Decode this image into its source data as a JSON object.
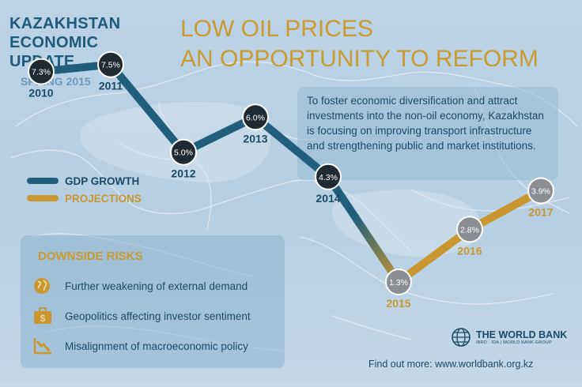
{
  "header": {
    "title_line1": "KAZAKHSTAN",
    "title_line2": "ECONOMIC",
    "title_line3": "UPDATE",
    "season": "SPRING 2015"
  },
  "headline": {
    "line1": "LOW OIL PRICES",
    "line2": "AN OPPORTUNITY TO REFORM"
  },
  "info_text": "To foster economic diversification and attract investments into the non-oil economy, Kazakhstan is focusing on improving transport infrastructure and strengthening public and market institutions.",
  "risks": {
    "title": "DOWNSIDE RISKS",
    "items": [
      {
        "label": "Further weakening of external demand",
        "icon": "globe-icon"
      },
      {
        "label": "Geopolitics affecting investor sentiment",
        "icon": "briefcase-dollar-icon"
      },
      {
        "label": "Misalignment of macroeconomic policy",
        "icon": "declining-chart-icon"
      }
    ]
  },
  "footer": {
    "find_out": "Find out more: www.worldbank.org.kz",
    "logo_name": "THE WORLD BANK",
    "logo_sub": "IBRD · IDA | WORLD BANK GROUP"
  },
  "colors": {
    "actual": "#215e7a",
    "projection": "#c9962f",
    "actual_marker": "#1f2a33",
    "projection_marker": "#8a8e92",
    "title": "#1f5a78",
    "accent": "#c99a2e"
  },
  "chart_data": {
    "type": "line",
    "x": [
      "2010",
      "2011",
      "2012",
      "2013",
      "2014",
      "2015",
      "2016",
      "2017"
    ],
    "series": [
      {
        "name": "GDP GROWTH",
        "x": [
          "2010",
          "2011",
          "2012",
          "2013",
          "2014"
        ],
        "values": [
          7.3,
          7.5,
          5.0,
          6.0,
          4.3
        ]
      },
      {
        "name": "PROJECTIONS",
        "x": [
          "2015",
          "2016",
          "2017"
        ],
        "values": [
          1.3,
          2.8,
          3.9
        ]
      }
    ],
    "data_labels": [
      "7.3%",
      "7.5%",
      "5.0%",
      "6.0%",
      "4.3%",
      "1.3%",
      "2.8%",
      "3.9%"
    ],
    "title": "",
    "xlabel": "",
    "ylabel": "",
    "legend": "left",
    "grid": false
  }
}
